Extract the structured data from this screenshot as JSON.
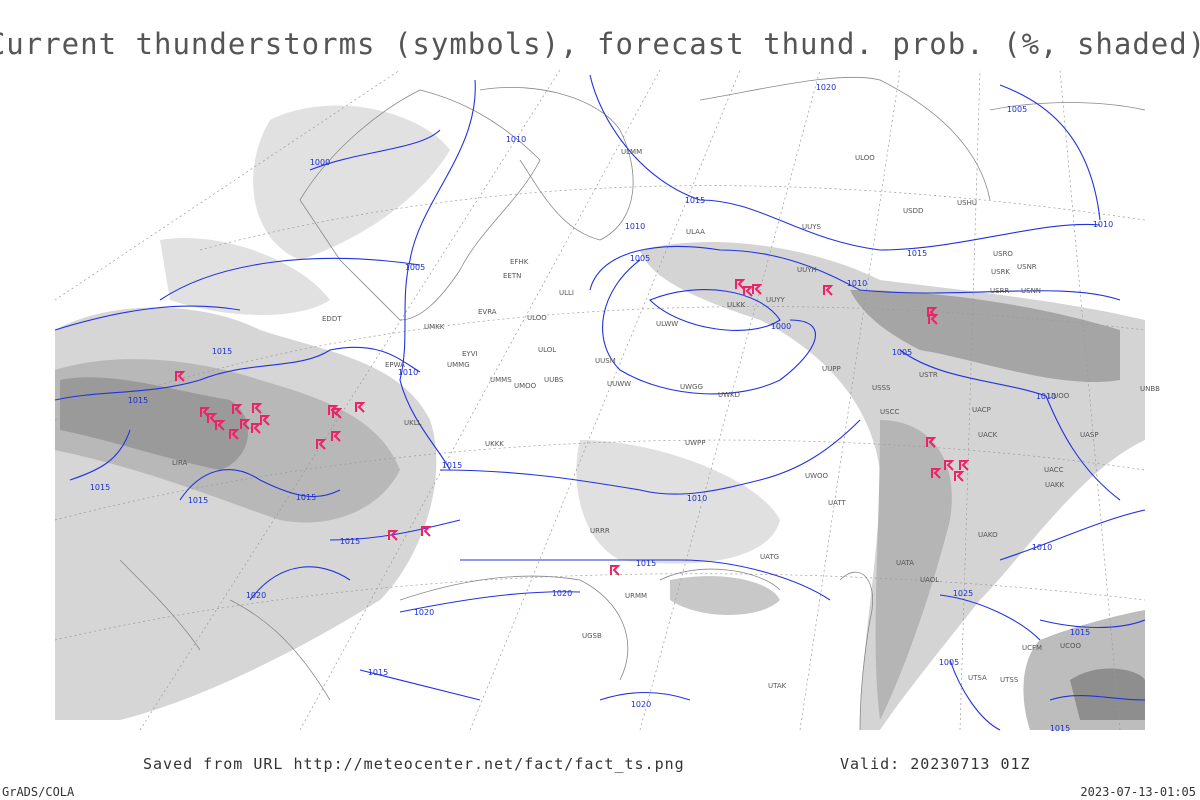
{
  "header": {
    "title": "Current thunderstorms (symbols), forecast thund. prob. (%, shaded)"
  },
  "map": {
    "isobar_labels": [
      "1000",
      "1010",
      "1020",
      "1005",
      "1015",
      "1010",
      "1010",
      "1005",
      "1015",
      "1005",
      "1010",
      "1000",
      "1015",
      "1005",
      "1010",
      "1015",
      "1010",
      "1015",
      "1015",
      "1015",
      "1015",
      "1010",
      "1015",
      "1010",
      "1015",
      "1020",
      "1025",
      "1020",
      "1020",
      "1015",
      "1015",
      "1005",
      "1020",
      "1015"
    ],
    "stations": [
      "ULMM",
      "ULOO",
      "USDD",
      "USHU",
      "UUYS",
      "ULAA",
      "EFHK",
      "EETN",
      "USRO",
      "USRK",
      "USNR",
      "USRR",
      "USNN",
      "UUYH",
      "ULLI",
      "ULKK",
      "UUYY",
      "ULWW",
      "EVRA",
      "ULOO",
      "EDDT",
      "UMKK",
      "ULOL",
      "EYVI",
      "EPWA",
      "UMMG",
      "UUSM",
      "UUPP",
      "USTR",
      "UMMS",
      "UMOO",
      "UUBS",
      "UUWW",
      "UWGG",
      "USSS",
      "UWKD",
      "USCC",
      "UACP",
      "UNBB",
      "UUOO",
      "UKLL",
      "UKKK",
      "UWPP",
      "UACK",
      "UACC",
      "UASP",
      "UAKK",
      "UWOO",
      "UATT",
      "UATG",
      "UATA",
      "UAOL",
      "UAKO",
      "LIRA",
      "URRR",
      "URMM",
      "UGSB",
      "UTAK",
      "UTSA",
      "UTSS",
      "UCFM",
      "UCOO"
    ]
  },
  "footer": {
    "source": "Saved from URL http://meteocenter.net/fact/fact_ts.png",
    "valid": "Valid: 20230713 01Z",
    "software": "GrADS/COLA",
    "timestamp": "2023-07-13-01:05"
  }
}
